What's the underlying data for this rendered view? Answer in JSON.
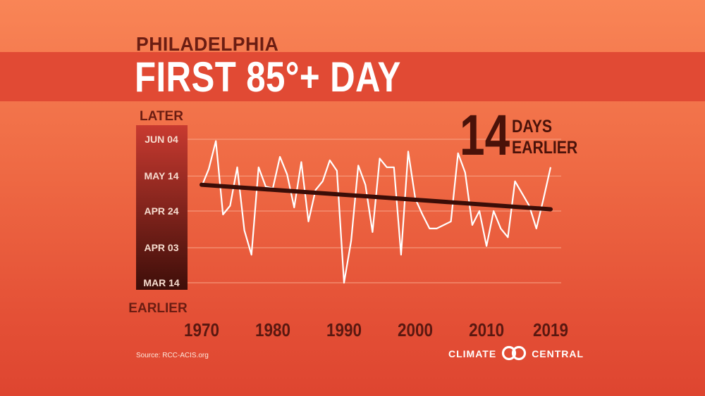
{
  "header": {
    "subtitle": "PHILADELPHIA",
    "title": "FIRST 85°+ DAY"
  },
  "callout": {
    "number": "14",
    "line1": "DAYS",
    "line2": "EARLIER"
  },
  "source": "Source: RCC-ACIS.org",
  "logo": {
    "left_text": "CLIMATE",
    "right_text": "CENTRAL",
    "icon": "climate-central-rings-icon"
  },
  "colors": {
    "line": "#ffffff",
    "trend": "#3b0d07",
    "axis_top": "#c83a30",
    "axis_bottom": "#3e0e09",
    "gridline": "#f7a487"
  },
  "chart_data": {
    "type": "line",
    "title": "FIRST 85°+ DAY",
    "subtitle": "PHILADELPHIA",
    "y_top_label": "LATER",
    "y_bottom_label": "EARLIER",
    "y_unit": "day of year",
    "y_ticks": [
      {
        "label": "JUN 04",
        "value": 155
      },
      {
        "label": "MAY 14",
        "value": 134
      },
      {
        "label": "APR 24",
        "value": 114
      },
      {
        "label": "APR 03",
        "value": 93
      },
      {
        "label": "MAR 14",
        "value": 73
      }
    ],
    "ylim": [
      73,
      155
    ],
    "xlim": [
      1970,
      2019
    ],
    "x_ticks": [
      1970,
      1980,
      1990,
      2000,
      2010,
      2019
    ],
    "grid": true,
    "series": [
      {
        "values": [
          {
            "x": 1970,
            "y": 128
          },
          {
            "x": 1971,
            "y": 138
          },
          {
            "x": 1972,
            "y": 154
          },
          {
            "x": 1973,
            "y": 112
          },
          {
            "x": 1974,
            "y": 117
          },
          {
            "x": 1975,
            "y": 139
          },
          {
            "x": 1976,
            "y": 103
          },
          {
            "x": 1977,
            "y": 89
          },
          {
            "x": 1978,
            "y": 139
          },
          {
            "x": 1979,
            "y": 128
          },
          {
            "x": 1980,
            "y": 127
          },
          {
            "x": 1981,
            "y": 145
          },
          {
            "x": 1982,
            "y": 135
          },
          {
            "x": 1983,
            "y": 116
          },
          {
            "x": 1984,
            "y": 142
          },
          {
            "x": 1985,
            "y": 108
          },
          {
            "x": 1986,
            "y": 126
          },
          {
            "x": 1987,
            "y": 131
          },
          {
            "x": 1988,
            "y": 143
          },
          {
            "x": 1989,
            "y": 137
          },
          {
            "x": 1990,
            "y": 73
          },
          {
            "x": 1991,
            "y": 97
          },
          {
            "x": 1992,
            "y": 140
          },
          {
            "x": 1993,
            "y": 129
          },
          {
            "x": 1994,
            "y": 102
          },
          {
            "x": 1995,
            "y": 144
          },
          {
            "x": 1996,
            "y": 139
          },
          {
            "x": 1997,
            "y": 139
          },
          {
            "x": 1998,
            "y": 89
          },
          {
            "x": 1999,
            "y": 148
          },
          {
            "x": 2000,
            "y": 121
          },
          {
            "x": 2001,
            "y": 112
          },
          {
            "x": 2002,
            "y": 104
          },
          {
            "x": 2003,
            "y": 104
          },
          {
            "x": 2004,
            "y": 106
          },
          {
            "x": 2005,
            "y": 108
          },
          {
            "x": 2006,
            "y": 147
          },
          {
            "x": 2007,
            "y": 136
          },
          {
            "x": 2008,
            "y": 106
          },
          {
            "x": 2009,
            "y": 114
          },
          {
            "x": 2010,
            "y": 94
          },
          {
            "x": 2011,
            "y": 114
          },
          {
            "x": 2012,
            "y": 104
          },
          {
            "x": 2013,
            "y": 99
          },
          {
            "x": 2014,
            "y": 131
          },
          {
            "x": 2015,
            "y": 124
          },
          {
            "x": 2016,
            "y": 117
          },
          {
            "x": 2017,
            "y": 104
          },
          {
            "x": 2018,
            "y": 121
          },
          {
            "x": 2019,
            "y": 139
          }
        ]
      }
    ],
    "trend_line": {
      "x": [
        1970,
        2019
      ],
      "y": [
        129,
        115
      ]
    },
    "annotation": "14 DAYS EARLIER"
  }
}
